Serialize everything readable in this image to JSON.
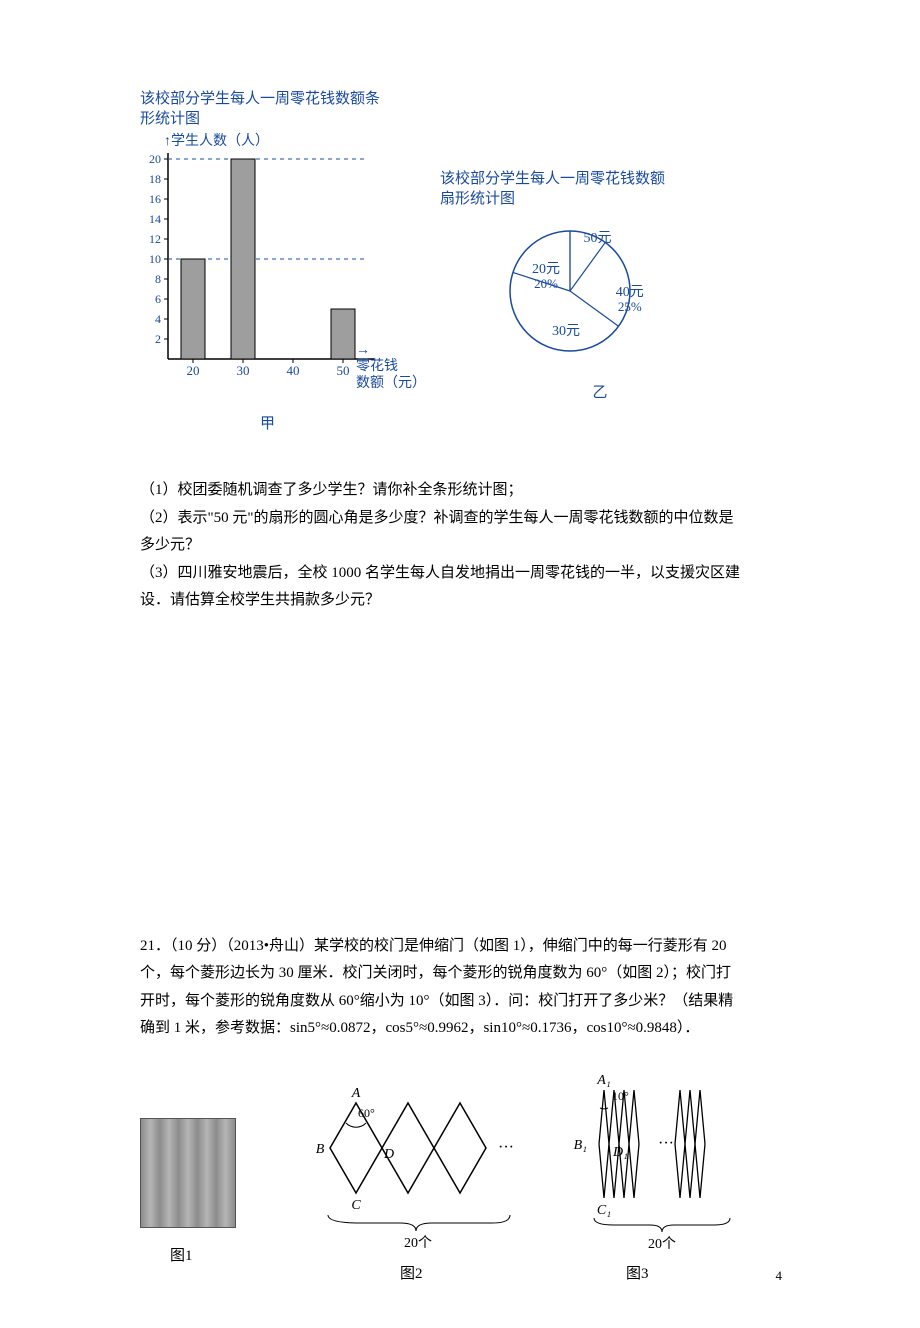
{
  "bar_chart": {
    "type": "bar",
    "title_l1": "该校部分学生每人一周零花钱数额条",
    "title_l2": "形统计图",
    "y_label": "学生人数（人）",
    "x_label_l1": "零花钱",
    "x_label_l2": "数额（元）",
    "caption": "甲",
    "categories": [
      "20",
      "30",
      "40",
      "50"
    ],
    "values": [
      10,
      20,
      0,
      5
    ],
    "ylim_max": 20,
    "ytick_step": 2,
    "dash_lines": [
      10,
      20
    ],
    "bar_fill": "#9e9e9e",
    "bar_stroke": "#000000",
    "axis_color": "#000000",
    "background": "#ffffff"
  },
  "pie_chart": {
    "type": "pie",
    "title_l1": "该校部分学生每人一周零花钱数额",
    "title_l2": "扇形统计图",
    "caption": "乙",
    "slices": [
      {
        "label": "50元",
        "value": 10
      },
      {
        "label": "40元",
        "sublabel": "25%",
        "value": 25
      },
      {
        "label": "30元",
        "value": 45
      },
      {
        "label": "20元",
        "sublabel": "20%",
        "value": 20
      }
    ],
    "stroke": "#1a4aa0",
    "background": "#ffffff"
  },
  "q20": {
    "l1": "（1）校团委随机调查了多少学生？请你补全条形统计图；",
    "l2": "（2）表示\"50 元\"的扇形的圆心角是多少度？补调查的学生每人一周零花钱数额的中位数是",
    "l3": "多少元？",
    "l4": "（3）四川雅安地震后，全校 1000 名学生每人自发地捐出一周零花钱的一半，以支援灾区建",
    "l5": "设．请估算全校学生共捐款多少元？"
  },
  "q21": {
    "l1": "21．（10 分）（2013•舟山）某学校的校门是伸缩门（如图 1），伸缩门中的每一行菱形有 20",
    "l2": "个，每个菱形边长为 30 厘米．校门关闭时，每个菱形的锐角度数为 60°（如图 2）；校门打",
    "l3": "开时，每个菱形的锐角度数从 60°缩小为 10°（如图 3）．问：校门打开了多少米？（结果精",
    "l4": "确到 1 米，参考数据：sin5°≈0.0872，cos5°≈0.9962，sin10°≈0.1736，cos10°≈0.9848）．"
  },
  "fig": {
    "cap1": "图1",
    "cap2": "图2",
    "cap3": "图3",
    "twenty": "20个",
    "angle60": "60°",
    "angle10": "10°",
    "A": "A",
    "B": "B",
    "C": "C",
    "D": "D",
    "A1": "A₁",
    "B1": "B₁",
    "C1": "C₁",
    "D1": "D₁",
    "diamond_stroke": "#000000"
  },
  "page_num": "4"
}
